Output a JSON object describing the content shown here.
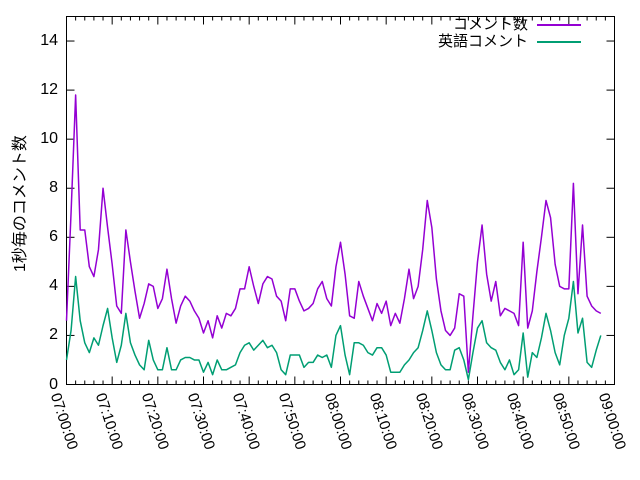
{
  "chart_data": {
    "type": "line",
    "title": "",
    "xlabel": "",
    "ylabel": "1秒毎のコメント数",
    "x_start_time": "07:00:00",
    "sample_interval_seconds": 60,
    "x_axis_range": [
      "07:00:00",
      "09:00:00"
    ],
    "x_tick_labels": [
      "07:00:00",
      "07:10:00",
      "07:20:00",
      "07:30:00",
      "07:40:00",
      "07:50:00",
      "08:00:00",
      "08:10:00",
      "08:20:00",
      "08:30:00",
      "08:40:00",
      "08:50:00",
      "09:00:00"
    ],
    "x_major_tick_minutes": 10,
    "x_minor_tick_minutes": 2,
    "ylim": [
      0,
      15
    ],
    "y_tick_labels": [
      "0",
      "2",
      "4",
      "6",
      "8",
      "10",
      "12",
      "14"
    ],
    "grid": false,
    "legend_position": "top-right-inside",
    "background_color": "#ffffff",
    "axis_color": "#000000",
    "series": [
      {
        "name": "コメント数",
        "color": "#9400d3",
        "values": [
          2.6,
          7.0,
          11.8,
          6.3,
          6.3,
          4.8,
          4.4,
          5.5,
          8.0,
          6.4,
          4.9,
          3.2,
          2.9,
          6.3,
          5.0,
          3.8,
          2.7,
          3.3,
          4.1,
          4.0,
          3.1,
          3.5,
          4.7,
          3.5,
          2.5,
          3.2,
          3.6,
          3.4,
          3.0,
          2.7,
          2.1,
          2.6,
          1.9,
          2.8,
          2.3,
          2.9,
          2.8,
          3.1,
          3.9,
          3.9,
          4.8,
          4.0,
          3.3,
          4.1,
          4.4,
          4.3,
          3.6,
          3.4,
          2.6,
          3.9,
          3.9,
          3.4,
          3.0,
          3.1,
          3.3,
          3.9,
          4.2,
          3.5,
          3.2,
          4.8,
          5.8,
          4.5,
          2.8,
          2.7,
          4.2,
          3.6,
          3.1,
          2.6,
          3.3,
          2.9,
          3.4,
          2.4,
          2.9,
          2.5,
          3.5,
          4.7,
          3.5,
          4.0,
          5.5,
          7.5,
          6.4,
          4.3,
          3.0,
          2.2,
          2.0,
          2.3,
          3.7,
          3.6,
          0.5,
          2.8,
          5.0,
          6.5,
          4.5,
          3.4,
          4.2,
          2.8,
          3.1,
          3.0,
          2.9,
          2.4,
          5.8,
          2.3,
          3.0,
          4.6,
          6.0,
          7.5,
          6.8,
          4.9,
          4.0,
          3.9,
          3.9,
          8.2,
          3.7,
          6.5,
          3.6,
          3.2,
          3.0,
          2.9
        ]
      },
      {
        "name": "英語コメント",
        "color": "#009e73",
        "values": [
          1.0,
          2.2,
          4.4,
          2.6,
          1.7,
          1.3,
          1.9,
          1.6,
          2.4,
          3.1,
          1.9,
          0.9,
          1.6,
          2.9,
          1.7,
          1.2,
          0.8,
          0.6,
          1.8,
          1.0,
          0.6,
          0.6,
          1.5,
          0.6,
          0.6,
          1.0,
          1.1,
          1.1,
          1.0,
          1.0,
          0.5,
          0.9,
          0.4,
          1.0,
          0.6,
          0.6,
          0.7,
          0.8,
          1.3,
          1.6,
          1.7,
          1.4,
          1.6,
          1.8,
          1.5,
          1.6,
          1.3,
          0.6,
          0.4,
          1.2,
          1.2,
          1.2,
          0.7,
          0.9,
          0.9,
          1.2,
          1.1,
          1.2,
          0.7,
          2.0,
          2.4,
          1.2,
          0.4,
          1.7,
          1.7,
          1.6,
          1.3,
          1.2,
          1.5,
          1.5,
          1.2,
          0.5,
          0.5,
          0.5,
          0.8,
          1.0,
          1.3,
          1.5,
          2.2,
          3.0,
          2.2,
          1.3,
          0.8,
          0.6,
          0.6,
          1.4,
          1.5,
          1.0,
          0.2,
          1.3,
          2.3,
          2.6,
          1.7,
          1.5,
          1.4,
          0.9,
          0.6,
          1.0,
          0.4,
          0.6,
          2.1,
          0.3,
          1.3,
          1.1,
          1.9,
          2.9,
          2.2,
          1.3,
          0.8,
          2.0,
          2.7,
          4.2,
          2.1,
          2.7,
          0.9,
          0.7,
          1.4,
          2.0
        ]
      }
    ]
  }
}
